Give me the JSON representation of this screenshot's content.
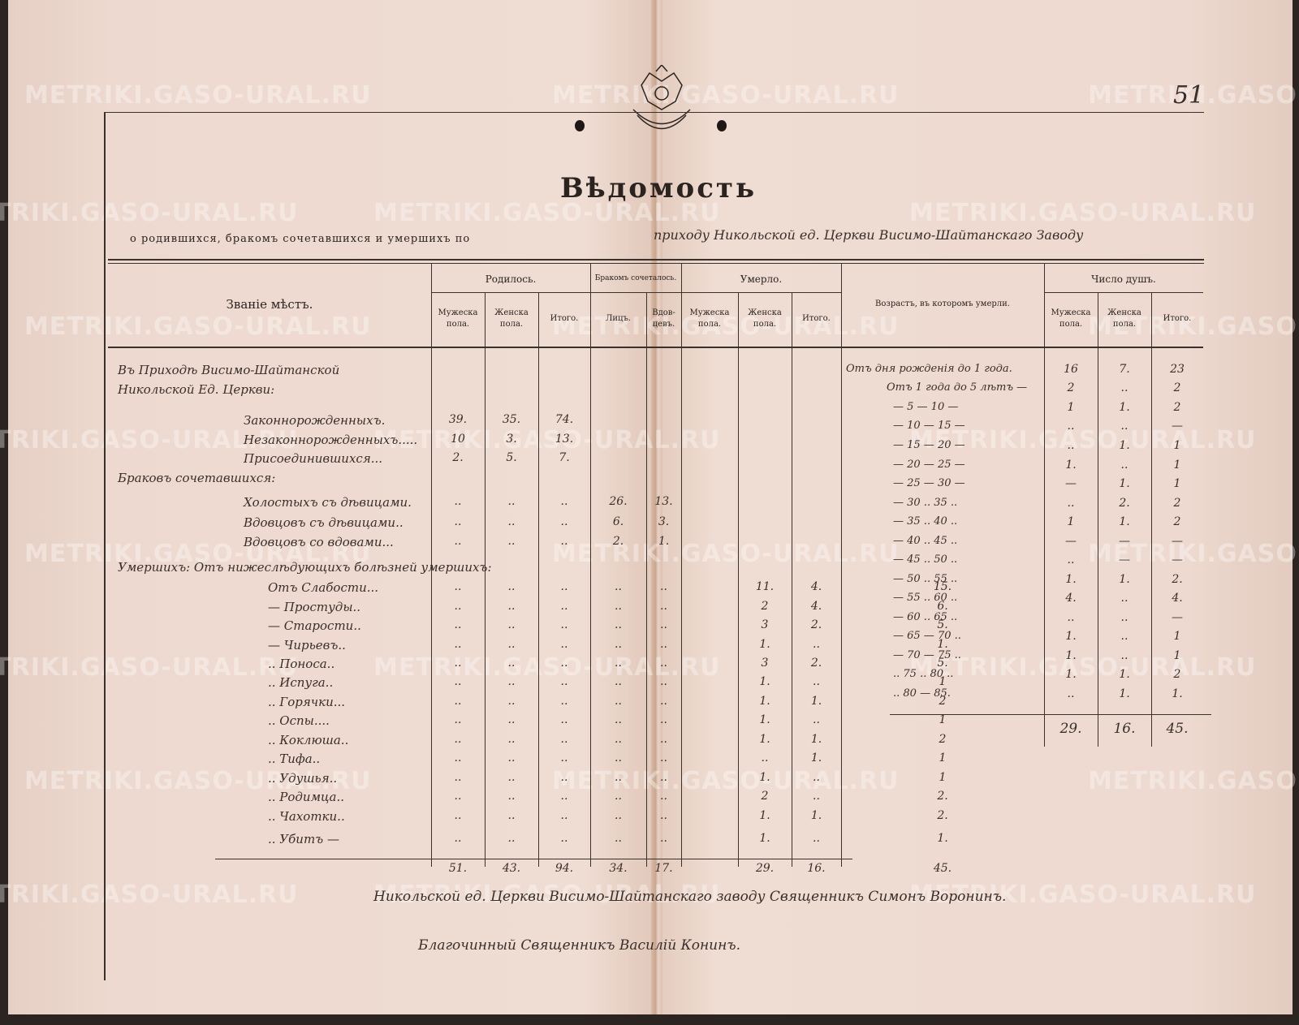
{
  "page_number": "51",
  "watermark": "METRIKI.GASO-URAL.RU",
  "emblem": "double-headed-eagle-seal",
  "title": "Вѣдомость",
  "subtitle_printed": "о родившихся, бракомъ сочетавшихся и умершихъ по",
  "subtitle_handwritten": "приходу Никольской ед. Церкви Висимо-Шайтанскаго Заводу",
  "headers": {
    "place": "Званіе мѣстъ.",
    "born": "Родилось.",
    "married": "Бракомъ сочеталось.",
    "died": "Умерло.",
    "age": "Возрастъ, въ которомъ умерли.",
    "souls": "Число душъ.",
    "male": "Мужеска пола.",
    "female": "Женска пола.",
    "total": "Итого.",
    "persons": "Лицъ.",
    "widowers": "Вдов-цевъ."
  },
  "left_rows": [
    {
      "label": "Въ Приходѣ Висимо-Шайтанской",
      "indent": 0,
      "values": []
    },
    {
      "label": "Никольской Ед. Церкви:",
      "indent": 0,
      "values": []
    },
    {
      "label": "Законнорожденныхъ.",
      "indent": 2,
      "values": [
        "39.",
        "35.",
        "74.",
        "",
        "",
        "",
        "",
        ""
      ]
    },
    {
      "label": "Незаконнорожденныхъ.....",
      "indent": 2,
      "values": [
        "10",
        "3.",
        "13.",
        "",
        "",
        "",
        "",
        ""
      ]
    },
    {
      "label": "Присоединившихся...",
      "indent": 2,
      "values": [
        "2.",
        "5.",
        "7.",
        "",
        "",
        "",
        "",
        ""
      ]
    },
    {
      "label": "Браковъ сочетавшихся:",
      "indent": 0,
      "values": []
    },
    {
      "label": "Холостыхъ съ дѣвицами.",
      "indent": 2,
      "values": [
        "..",
        "..",
        "..",
        "26.",
        "13.",
        "",
        "",
        ""
      ]
    },
    {
      "label": "Вдовцовъ съ дѣвицами..",
      "indent": 2,
      "values": [
        "..",
        "..",
        "..",
        "6.",
        "3.",
        "",
        "",
        ""
      ]
    },
    {
      "label": "Вдовцовъ со вдовами...",
      "indent": 2,
      "values": [
        "..",
        "..",
        "..",
        "2.",
        "1.",
        "",
        "",
        ""
      ]
    },
    {
      "label": "Умершихъ: Отъ нижеслѣдующихъ болѣзней умершихъ:",
      "indent": 0,
      "values": []
    },
    {
      "label": "Отъ Слабости...",
      "indent": 1,
      "values": [
        "..",
        "..",
        "..",
        "..",
        "..",
        "11.",
        "4.",
        "15."
      ]
    },
    {
      "label": "— Простуды..",
      "indent": 1,
      "values": [
        "..",
        "..",
        "..",
        "..",
        "..",
        "2",
        "4.",
        "6."
      ]
    },
    {
      "label": "— Старости..",
      "indent": 1,
      "values": [
        "..",
        "..",
        "..",
        "..",
        "..",
        "3",
        "2.",
        "5."
      ]
    },
    {
      "label": "— Чирьевъ..",
      "indent": 1,
      "values": [
        "..",
        "..",
        "..",
        "..",
        "..",
        "1.",
        "..",
        "1."
      ]
    },
    {
      "label": ".. Поноса..",
      "indent": 1,
      "values": [
        "..",
        "..",
        "..",
        "..",
        "..",
        "3",
        "2.",
        "5."
      ]
    },
    {
      "label": ".. Испуга..",
      "indent": 1,
      "values": [
        "..",
        "..",
        "..",
        "..",
        "..",
        "1.",
        "..",
        "1"
      ]
    },
    {
      "label": ".. Горячки...",
      "indent": 1,
      "values": [
        "..",
        "..",
        "..",
        "..",
        "..",
        "1.",
        "1.",
        "2"
      ]
    },
    {
      "label": ".. Оспы....",
      "indent": 1,
      "values": [
        "..",
        "..",
        "..",
        "..",
        "..",
        "1.",
        "..",
        "1"
      ]
    },
    {
      "label": ".. Коклюша..",
      "indent": 1,
      "values": [
        "..",
        "..",
        "..",
        "..",
        "..",
        "1.",
        "1.",
        "2"
      ]
    },
    {
      "label": ".. Тифа..",
      "indent": 1,
      "values": [
        "..",
        "..",
        "..",
        "..",
        "..",
        "..",
        "1.",
        "1"
      ]
    },
    {
      "label": ".. Удушья..",
      "indent": 1,
      "values": [
        "..",
        "..",
        "..",
        "..",
        "..",
        "1.",
        "..",
        "1"
      ]
    },
    {
      "label": ".. Родимца..",
      "indent": 1,
      "values": [
        "..",
        "..",
        "..",
        "..",
        "..",
        "2",
        "..",
        "2."
      ]
    },
    {
      "label": ".. Чахотки..",
      "indent": 1,
      "values": [
        "..",
        "..",
        "..",
        "..",
        "..",
        "1.",
        "1.",
        "2."
      ]
    },
    {
      "label": ".. Убитъ —",
      "indent": 1,
      "values": [
        "..",
        "..",
        "..",
        "..",
        "..",
        "1.",
        "..",
        "1."
      ]
    }
  ],
  "left_totals": [
    "51.",
    "43.",
    "94.",
    "34.",
    "17.",
    "29.",
    "16.",
    "45."
  ],
  "age_rows": [
    {
      "label": "Отъ дня рожденія до 1 года.",
      "values": [
        "16",
        "7.",
        "23"
      ]
    },
    {
      "label": "Отъ 1 года до 5 лѣтъ —",
      "values": [
        "2",
        "..",
        "2"
      ]
    },
    {
      "label": "— 5 — 10 —",
      "values": [
        "1",
        "1.",
        "2"
      ]
    },
    {
      "label": "— 10 — 15 —",
      "values": [
        "..",
        "..",
        "—"
      ]
    },
    {
      "label": "— 15 — 20 —",
      "values": [
        "..",
        "1.",
        "1"
      ]
    },
    {
      "label": "— 20 — 25 —",
      "values": [
        "1.",
        "..",
        "1"
      ]
    },
    {
      "label": "— 25 — 30 —",
      "values": [
        "—",
        "1.",
        "1"
      ]
    },
    {
      "label": "— 30 .. 35 ..",
      "values": [
        "..",
        "2.",
        "2"
      ]
    },
    {
      "label": "— 35 .. 40 ..",
      "values": [
        "1",
        "1.",
        "2"
      ]
    },
    {
      "label": "— 40 .. 45 ..",
      "values": [
        "—",
        "—",
        "—"
      ]
    },
    {
      "label": "— 45 .. 50 ..",
      "values": [
        "..",
        "—",
        "—"
      ]
    },
    {
      "label": "— 50 .. 55 ..",
      "values": [
        "1.",
        "1.",
        "2."
      ]
    },
    {
      "label": "— 55 .. 60 ..",
      "values": [
        "4.",
        "..",
        "4."
      ]
    },
    {
      "label": "— 60 .. 65 ..",
      "values": [
        "..",
        "..",
        "—"
      ]
    },
    {
      "label": "— 65 — 70 ..",
      "values": [
        "1.",
        "..",
        "1"
      ]
    },
    {
      "label": "— 70 — 75 ..",
      "values": [
        "1.",
        "..",
        "1"
      ]
    },
    {
      "label": ".. 75 .. 80 ..",
      "values": [
        "1.",
        "1.",
        "2"
      ]
    },
    {
      "label": ".. 80 — 85.",
      "values": [
        "..",
        "1.",
        "1."
      ]
    }
  ],
  "age_totals": [
    "29.",
    "16.",
    "45."
  ],
  "signatures": [
    "Никольской ед. Церкви Висимо-Шайтанскаго заводу Священникъ Симонъ Воронинъ.",
    "Благочинный Священникъ Василій Конинъ."
  ]
}
